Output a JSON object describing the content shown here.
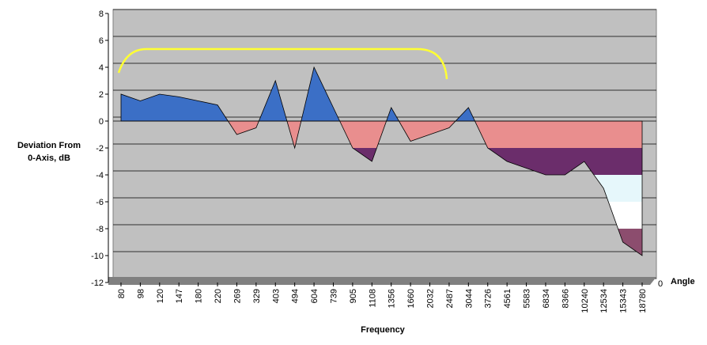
{
  "chart_data": {
    "type": "surface",
    "y_label": [
      "Deviation From",
      "0-Axis, dB"
    ],
    "x_label": "Frequency",
    "depth_label": "Angle",
    "categories": [
      "80",
      "98",
      "120",
      "147",
      "180",
      "220",
      "269",
      "329",
      "403",
      "494",
      "604",
      "739",
      "905",
      "1108",
      "1356",
      "1660",
      "2032",
      "2487",
      "3044",
      "3726",
      "4561",
      "5583",
      "6834",
      "8366",
      "10240",
      "12534",
      "15343",
      "18780"
    ],
    "series": [
      {
        "name": "0",
        "values": [
          2,
          1.5,
          2,
          1.8,
          1.5,
          1.2,
          -1,
          -0.5,
          3,
          -2,
          4,
          1,
          -2,
          -3,
          1,
          -1.5,
          -1,
          -0.5,
          1,
          -2,
          -3,
          -3.5,
          -4,
          -4,
          -3,
          -5,
          -9,
          -10
        ]
      }
    ],
    "ylim": [
      -12,
      8
    ],
    "yticks": [
      -12,
      -10,
      -8,
      -6,
      -4,
      -2,
      0,
      2,
      4,
      6,
      8
    ],
    "grid": true,
    "positive_color": "#3b6fc6",
    "negative_band_colors": [
      "#e98e8e",
      "#6b2d6b",
      "#e6f7fb",
      "#ffffff",
      "#8c4d6e",
      "#5a2a5a"
    ]
  }
}
